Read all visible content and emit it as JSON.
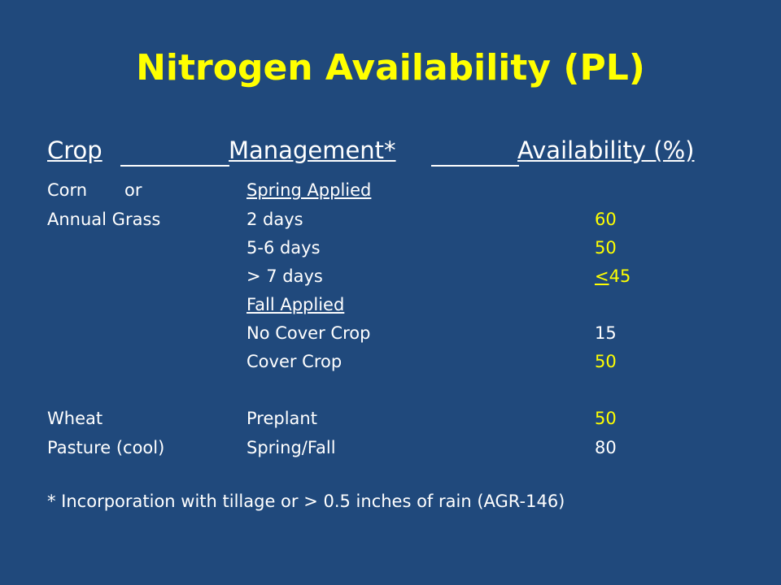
{
  "title": "Nitrogen Availability (PL)",
  "headers": {
    "crop": "Crop",
    "management": "Management*",
    "availability": "Availability (%)"
  },
  "crops": {
    "corn": "Corn",
    "or": "or",
    "annual_grass": "Annual Grass",
    "wheat": "Wheat",
    "pasture": "Pasture (cool)"
  },
  "management": {
    "spring_applied": "Spring Applied",
    "two_days": "2 days",
    "five_six_days": "5-6 days",
    "gt_seven_days": "> 7 days",
    "fall_applied": "Fall Applied",
    "no_cover_crop": "No Cover Crop",
    "cover_crop": "Cover Crop",
    "preplant": "Preplant",
    "spring_fall": "Spring/Fall"
  },
  "availability": {
    "two_days": "60",
    "five_six_days": "50",
    "gt_seven_days_symbol": "<",
    "gt_seven_days_value": "45",
    "no_cover_crop": "15",
    "cover_crop": "50",
    "preplant": "50",
    "spring_fall": "80"
  },
  "footnote": "* Incorporation with tillage or > 0.5 inches of rain (AGR-146)",
  "colors": {
    "background": "#20497c",
    "title": "#ffff00",
    "text": "#ffffff",
    "highlight": "#ffff00"
  }
}
